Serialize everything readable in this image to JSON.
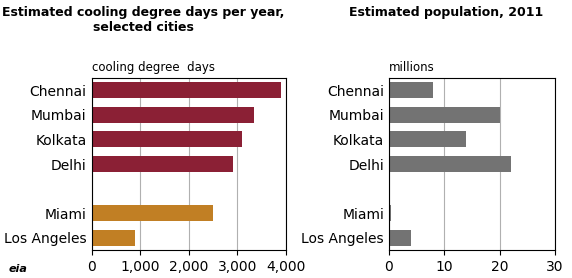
{
  "chart_data": [
    {
      "type": "bar",
      "orientation": "horizontal",
      "title": "Estimated cooling degree days per year, selected cities",
      "subtitle": "cooling degree  days",
      "categories": [
        "Chennai",
        "Mumbai",
        "Kolkata",
        "Delhi",
        null,
        "Miami",
        "Los Angeles"
      ],
      "values": [
        3900,
        3350,
        3100,
        2900,
        0,
        2500,
        900
      ],
      "colors": [
        "#8B2035",
        "#8B2035",
        "#8B2035",
        "#8B2035",
        null,
        "#C17F24",
        "#C17F24"
      ],
      "xlim": [
        0,
        4000
      ],
      "xticks": [
        0,
        {
          "value": 1000,
          "label": "1,000"
        },
        {
          "value": 2000,
          "label": "2,000"
        },
        {
          "value": 3000,
          "label": "3,000"
        },
        {
          "value": 4000,
          "label": "4,000"
        }
      ],
      "grid": true,
      "annotations": [
        "eia"
      ]
    },
    {
      "type": "bar",
      "orientation": "horizontal",
      "title": "Estimated population, 2011",
      "subtitle": "millions",
      "categories": [
        "Chennai",
        "Mumbai",
        "Kolkata",
        "Delhi",
        null,
        "Miami",
        "Los Angeles"
      ],
      "values": [
        8,
        20,
        14,
        22,
        0,
        0.4,
        4
      ],
      "colors": [
        "#737373",
        "#737373",
        "#737373",
        "#737373",
        null,
        "#737373",
        "#737373"
      ],
      "xlim": [
        0,
        30
      ],
      "xticks": [
        0,
        10,
        20,
        30
      ],
      "grid": true
    }
  ]
}
